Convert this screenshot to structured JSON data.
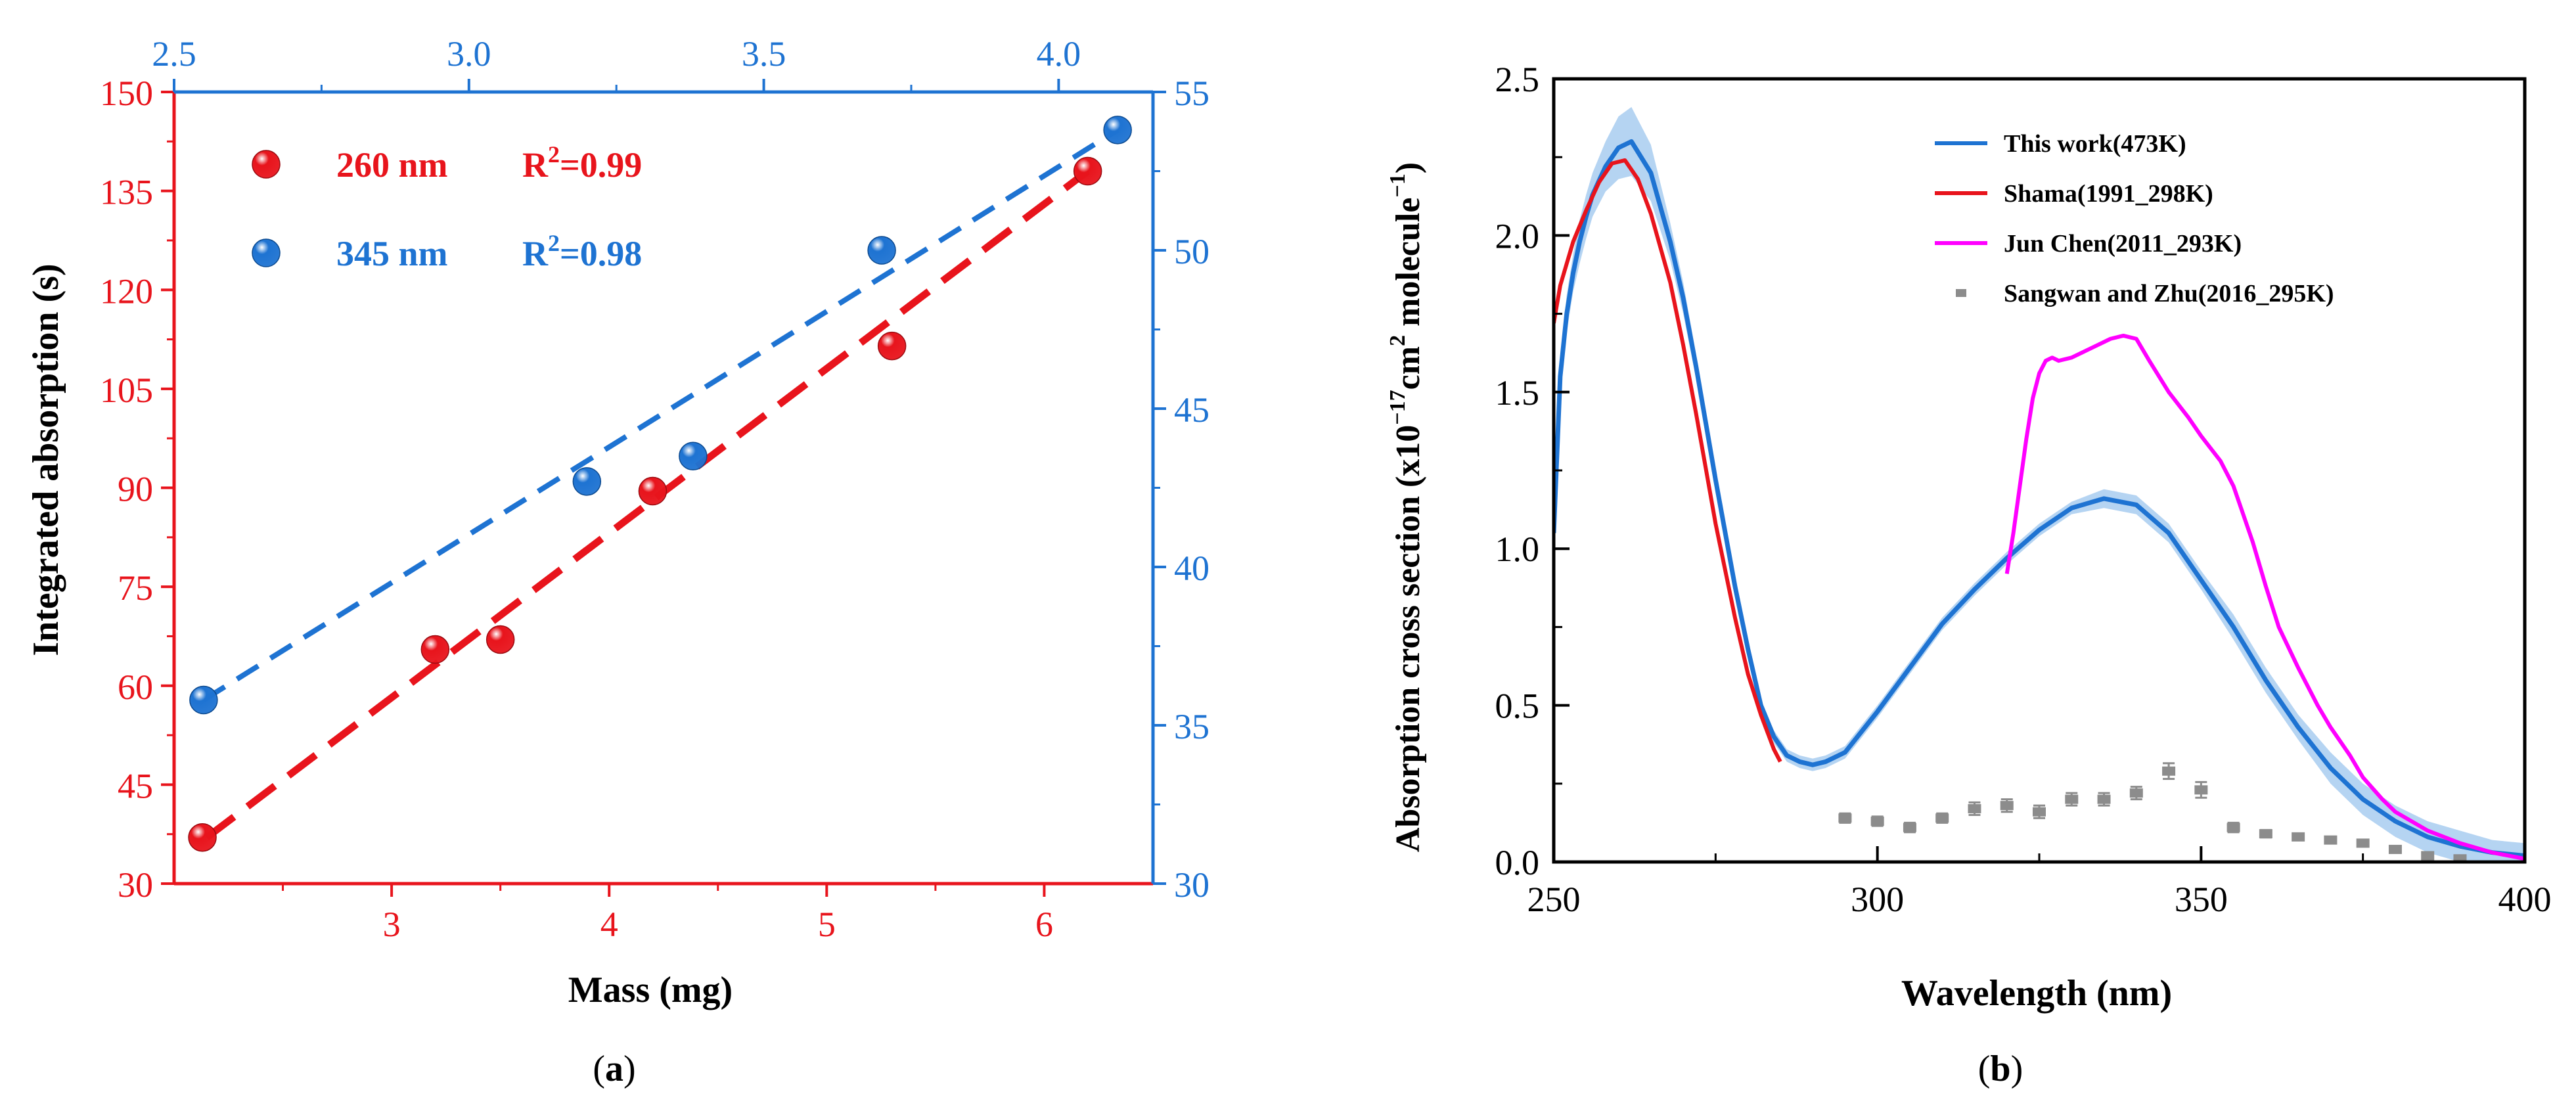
{
  "panels": {
    "a": {
      "caption": "(a)",
      "caption_letter": "a",
      "xlabel": "Mass (mg)",
      "ylabel": "Integrated absorption (s)",
      "x_ticks": [
        "3",
        "4",
        "5",
        "6"
      ],
      "y_left_ticks": [
        "30",
        "45",
        "60",
        "75",
        "90",
        "105",
        "120",
        "135",
        "150"
      ],
      "x_top_ticks": [
        "2.5",
        "3.0",
        "3.5",
        "4.0"
      ],
      "y_right_ticks": [
        "30",
        "35",
        "40",
        "45",
        "50",
        "55"
      ]
    },
    "b": {
      "caption": "(b)",
      "caption_letter": "b",
      "xlabel": "Wavelength (nm)",
      "ylabel": "Absorption cross section (x10⁻¹⁷cm² molecule⁻¹)",
      "x_ticks": [
        "250",
        "300",
        "350",
        "400"
      ],
      "y_ticks": [
        "0.0",
        "0.5",
        "1.0",
        "1.5",
        "2.0",
        "2.5"
      ]
    }
  },
  "chart_data": [
    {
      "type": "scatter",
      "title": "",
      "xlabel": "Mass (mg)",
      "ylabel": "Integrated absorption (s)",
      "xlim": [
        2.0,
        6.5
      ],
      "ylim": [
        30,
        150
      ],
      "secondary_x": {
        "xlim": [
          2.5,
          4.16
        ],
        "ticks": [
          "2.5",
          "3.0",
          "3.5",
          "4.0"
        ]
      },
      "secondary_y": {
        "ylim": [
          30,
          55
        ],
        "ticks": [
          "30",
          "35",
          "40",
          "45",
          "50",
          "55"
        ]
      },
      "grid": false,
      "legend": "top-left",
      "series": [
        {
          "name": "260 nm",
          "r2_label": "R²=0.99",
          "axis": "bottom-left",
          "color": "#e8141c",
          "x": [
            2.13,
            3.2,
            3.5,
            4.2,
            5.3,
            6.2
          ],
          "y": [
            37,
            65.5,
            67,
            89.5,
            111.5,
            138
          ],
          "fit": {
            "x": [
              2.15,
              6.2
            ],
            "y": [
              37,
              138
            ]
          }
        },
        {
          "name": "345 nm",
          "r2_label": "R²=0.98",
          "axis": "top-right",
          "color": "#1e73d2",
          "x": [
            2.55,
            3.2,
            3.38,
            3.7,
            4.1
          ],
          "y": [
            35.8,
            42.7,
            43.5,
            50,
            53.8
          ],
          "fit": {
            "x": [
              2.55,
              4.1
            ],
            "y": [
              35.8,
              53.8
            ]
          }
        }
      ]
    },
    {
      "type": "line",
      "title": "",
      "xlabel": "Wavelength (nm)",
      "ylabel": "Absorption cross section (x10⁻¹⁷cm² molecule⁻¹)",
      "xlim": [
        250,
        400
      ],
      "ylim": [
        0,
        2.5
      ],
      "grid": false,
      "legend": "top-right",
      "series": [
        {
          "name": "This work(473K)",
          "color": "#1e73d2",
          "band_color": "#a8cdf0",
          "x": [
            250,
            250.5,
            251,
            252,
            253,
            254,
            255,
            256,
            258,
            260,
            262,
            265,
            268,
            270,
            272,
            275,
            278,
            280,
            282,
            284,
            286,
            288,
            290,
            292,
            295,
            300,
            305,
            310,
            315,
            320,
            325,
            330,
            335,
            340,
            345,
            350,
            355,
            360,
            365,
            370,
            375,
            380,
            385,
            390,
            395,
            400
          ],
          "y": [
            1.05,
            1.3,
            1.55,
            1.75,
            1.88,
            1.98,
            2.06,
            2.13,
            2.22,
            2.28,
            2.3,
            2.2,
            1.98,
            1.8,
            1.58,
            1.22,
            0.88,
            0.68,
            0.5,
            0.4,
            0.34,
            0.32,
            0.31,
            0.32,
            0.35,
            0.48,
            0.62,
            0.76,
            0.87,
            0.97,
            1.06,
            1.13,
            1.16,
            1.14,
            1.05,
            0.9,
            0.75,
            0.58,
            0.43,
            0.3,
            0.2,
            0.13,
            0.08,
            0.05,
            0.03,
            0.02
          ],
          "band": [
            0.05,
            0.05,
            0.06,
            0.06,
            0.06,
            0.07,
            0.07,
            0.07,
            0.08,
            0.1,
            0.11,
            0.09,
            0.06,
            0.05,
            0.04,
            0.03,
            0.03,
            0.02,
            0.02,
            0.02,
            0.02,
            0.02,
            0.02,
            0.02,
            0.02,
            0.02,
            0.02,
            0.02,
            0.02,
            0.02,
            0.02,
            0.02,
            0.03,
            0.03,
            0.03,
            0.03,
            0.04,
            0.04,
            0.04,
            0.05,
            0.05,
            0.05,
            0.05,
            0.05,
            0.04,
            0.04
          ]
        },
        {
          "name": "Shama(1991_298K)",
          "color": "#e8141c",
          "x": [
            250,
            251,
            253,
            255,
            257,
            259,
            261,
            263,
            265,
            268,
            270,
            272,
            275,
            278,
            280,
            282,
            284,
            285
          ],
          "y": [
            1.72,
            1.84,
            1.98,
            2.08,
            2.17,
            2.23,
            2.24,
            2.18,
            2.07,
            1.85,
            1.65,
            1.43,
            1.08,
            0.78,
            0.6,
            0.47,
            0.36,
            0.32
          ]
        },
        {
          "name": "Jun Chen(2011_293K)",
          "color": "#ff00ff",
          "x": [
            320,
            321,
            322,
            323,
            324,
            325,
            326,
            327,
            328,
            330,
            332,
            334,
            336,
            338,
            340,
            342,
            345,
            348,
            350,
            353,
            355,
            358,
            360,
            362,
            365,
            368,
            370,
            373,
            375,
            378,
            380,
            385,
            390,
            395,
            400
          ],
          "y": [
            0.92,
            1.05,
            1.2,
            1.35,
            1.48,
            1.56,
            1.6,
            1.61,
            1.6,
            1.61,
            1.63,
            1.65,
            1.67,
            1.68,
            1.67,
            1.6,
            1.5,
            1.42,
            1.36,
            1.28,
            1.2,
            1.02,
            0.88,
            0.75,
            0.62,
            0.5,
            0.43,
            0.34,
            0.27,
            0.2,
            0.16,
            0.1,
            0.06,
            0.03,
            0.01
          ]
        },
        {
          "name": "Sangwan and Zhu(2016_295K)",
          "color": "#8c8c8c",
          "style": "error-points",
          "x": [
            295,
            300,
            305,
            310,
            315,
            320,
            325,
            330,
            335,
            340,
            345,
            350,
            355,
            360,
            365,
            370,
            375,
            380,
            385,
            390
          ],
          "y": [
            0.14,
            0.13,
            0.11,
            0.14,
            0.17,
            0.18,
            0.16,
            0.2,
            0.2,
            0.22,
            0.29,
            0.23,
            0.11,
            0.09,
            0.08,
            0.07,
            0.06,
            0.04,
            0.02,
            0.01
          ],
          "err": [
            0.015,
            0.015,
            0.015,
            0.015,
            0.02,
            0.02,
            0.02,
            0.02,
            0.02,
            0.02,
            0.025,
            0.025,
            0.015,
            0.012,
            0.01,
            0.01,
            0.01,
            0.01,
            0.01,
            0.01
          ]
        }
      ]
    }
  ]
}
